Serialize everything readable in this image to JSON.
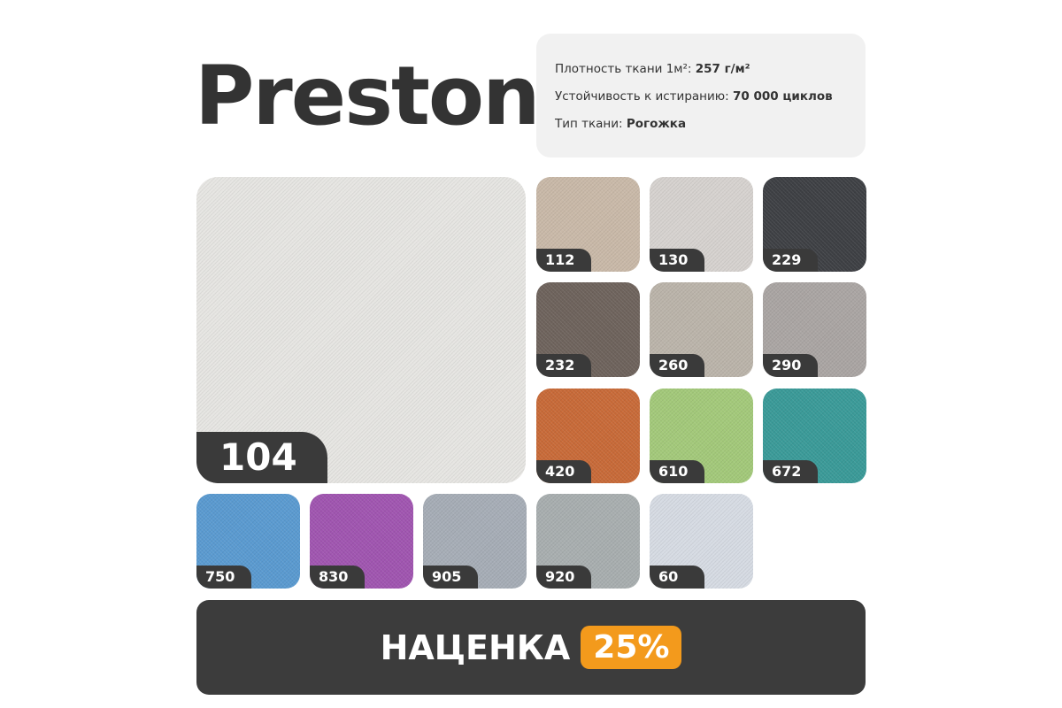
{
  "title": "Preston",
  "specs": [
    {
      "label": "Плотность ткани 1м²: ",
      "value": "257 г/м²"
    },
    {
      "label": "Устойчивость к истиранию: ",
      "value": "70 000 циклов"
    },
    {
      "label": "Тип ткани: ",
      "value": "Рогожка"
    }
  ],
  "main_swatch": {
    "code": "104",
    "color": "#e6e5e2"
  },
  "swatches": [
    {
      "code": "112",
      "color": "#c9b9a8"
    },
    {
      "code": "130",
      "color": "#d6d2cf"
    },
    {
      "code": "229",
      "color": "#3e4044"
    },
    {
      "code": "232",
      "color": "#6e635c"
    },
    {
      "code": "260",
      "color": "#bbb4aa"
    },
    {
      "code": "290",
      "color": "#aaa5a3"
    },
    {
      "code": "420",
      "color": "#c86a38"
    },
    {
      "code": "610",
      "color": "#a3c97a"
    },
    {
      "code": "672",
      "color": "#3a9a98"
    },
    {
      "code": "750",
      "color": "#5a9ad0"
    },
    {
      "code": "830",
      "color": "#a055b0"
    },
    {
      "code": "905",
      "color": "#a6adb6"
    },
    {
      "code": "920",
      "color": "#a8aeaf"
    },
    {
      "code": "60",
      "color": "#d6dbe3"
    }
  ],
  "banner": {
    "text": "НАЦЕНКА",
    "badge": "25%",
    "badge_color": "#f39a1c"
  }
}
